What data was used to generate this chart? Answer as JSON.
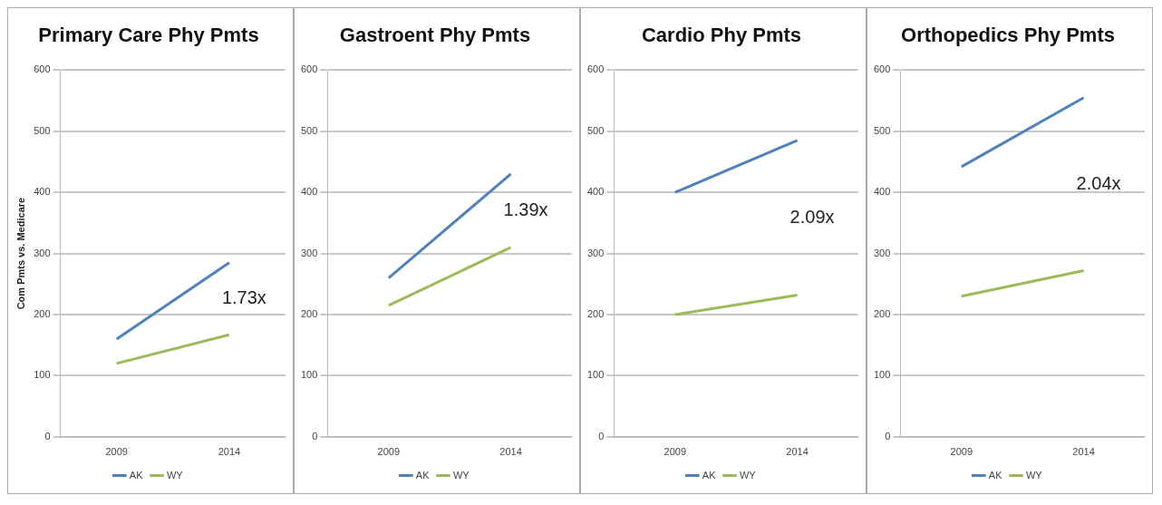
{
  "chart_data": [
    {
      "type": "line",
      "title": "Primary Care Phy Pmts",
      "ylabel": "Com Pmts vs. Medicare",
      "categories": [
        "2009",
        "2014"
      ],
      "series": [
        {
          "name": "AK",
          "color": "#4f81bd",
          "values": [
            160,
            285
          ]
        },
        {
          "name": "WY",
          "color": "#9bbb59",
          "values": [
            120,
            167
          ]
        }
      ],
      "ylim": [
        0,
        600
      ],
      "yticks": [
        0,
        100,
        200,
        300,
        400,
        500,
        600
      ],
      "grid": "y",
      "legend": "bottom",
      "marker": "none",
      "annotations": [
        "1.73x"
      ]
    },
    {
      "type": "line",
      "title": "Gastroent Phy Pmts",
      "categories": [
        "2009",
        "2014"
      ],
      "series": [
        {
          "name": "AK",
          "color": "#4f81bd",
          "values": [
            260,
            430
          ]
        },
        {
          "name": "WY",
          "color": "#9bbb59",
          "values": [
            215,
            310
          ]
        }
      ],
      "ylim": [
        0,
        600
      ],
      "yticks": [
        0,
        100,
        200,
        300,
        400,
        500,
        600
      ],
      "grid": "y",
      "legend": "bottom",
      "marker": "none",
      "annotations": [
        "1.39x"
      ]
    },
    {
      "type": "line",
      "title": "Cardio Phy Pmts",
      "categories": [
        "2009",
        "2014"
      ],
      "series": [
        {
          "name": "AK",
          "color": "#4f81bd",
          "values": [
            400,
            485
          ]
        },
        {
          "name": "WY",
          "color": "#9bbb59",
          "values": [
            200,
            232
          ]
        }
      ],
      "ylim": [
        0,
        600
      ],
      "yticks": [
        0,
        100,
        200,
        300,
        400,
        500,
        600
      ],
      "grid": "y",
      "legend": "bottom",
      "marker": "none",
      "annotations": [
        "2.09x"
      ]
    },
    {
      "type": "line",
      "title": "Orthopedics Phy Pmts",
      "categories": [
        "2009",
        "2014"
      ],
      "series": [
        {
          "name": "AK",
          "color": "#4f81bd",
          "values": [
            442,
            555
          ]
        },
        {
          "name": "WY",
          "color": "#9bbb59",
          "values": [
            230,
            272
          ]
        }
      ],
      "ylim": [
        0,
        600
      ],
      "yticks": [
        0,
        100,
        200,
        300,
        400,
        500,
        600
      ],
      "grid": "y",
      "legend": "bottom",
      "marker": "none",
      "annotations": [
        "2.04x"
      ]
    }
  ]
}
